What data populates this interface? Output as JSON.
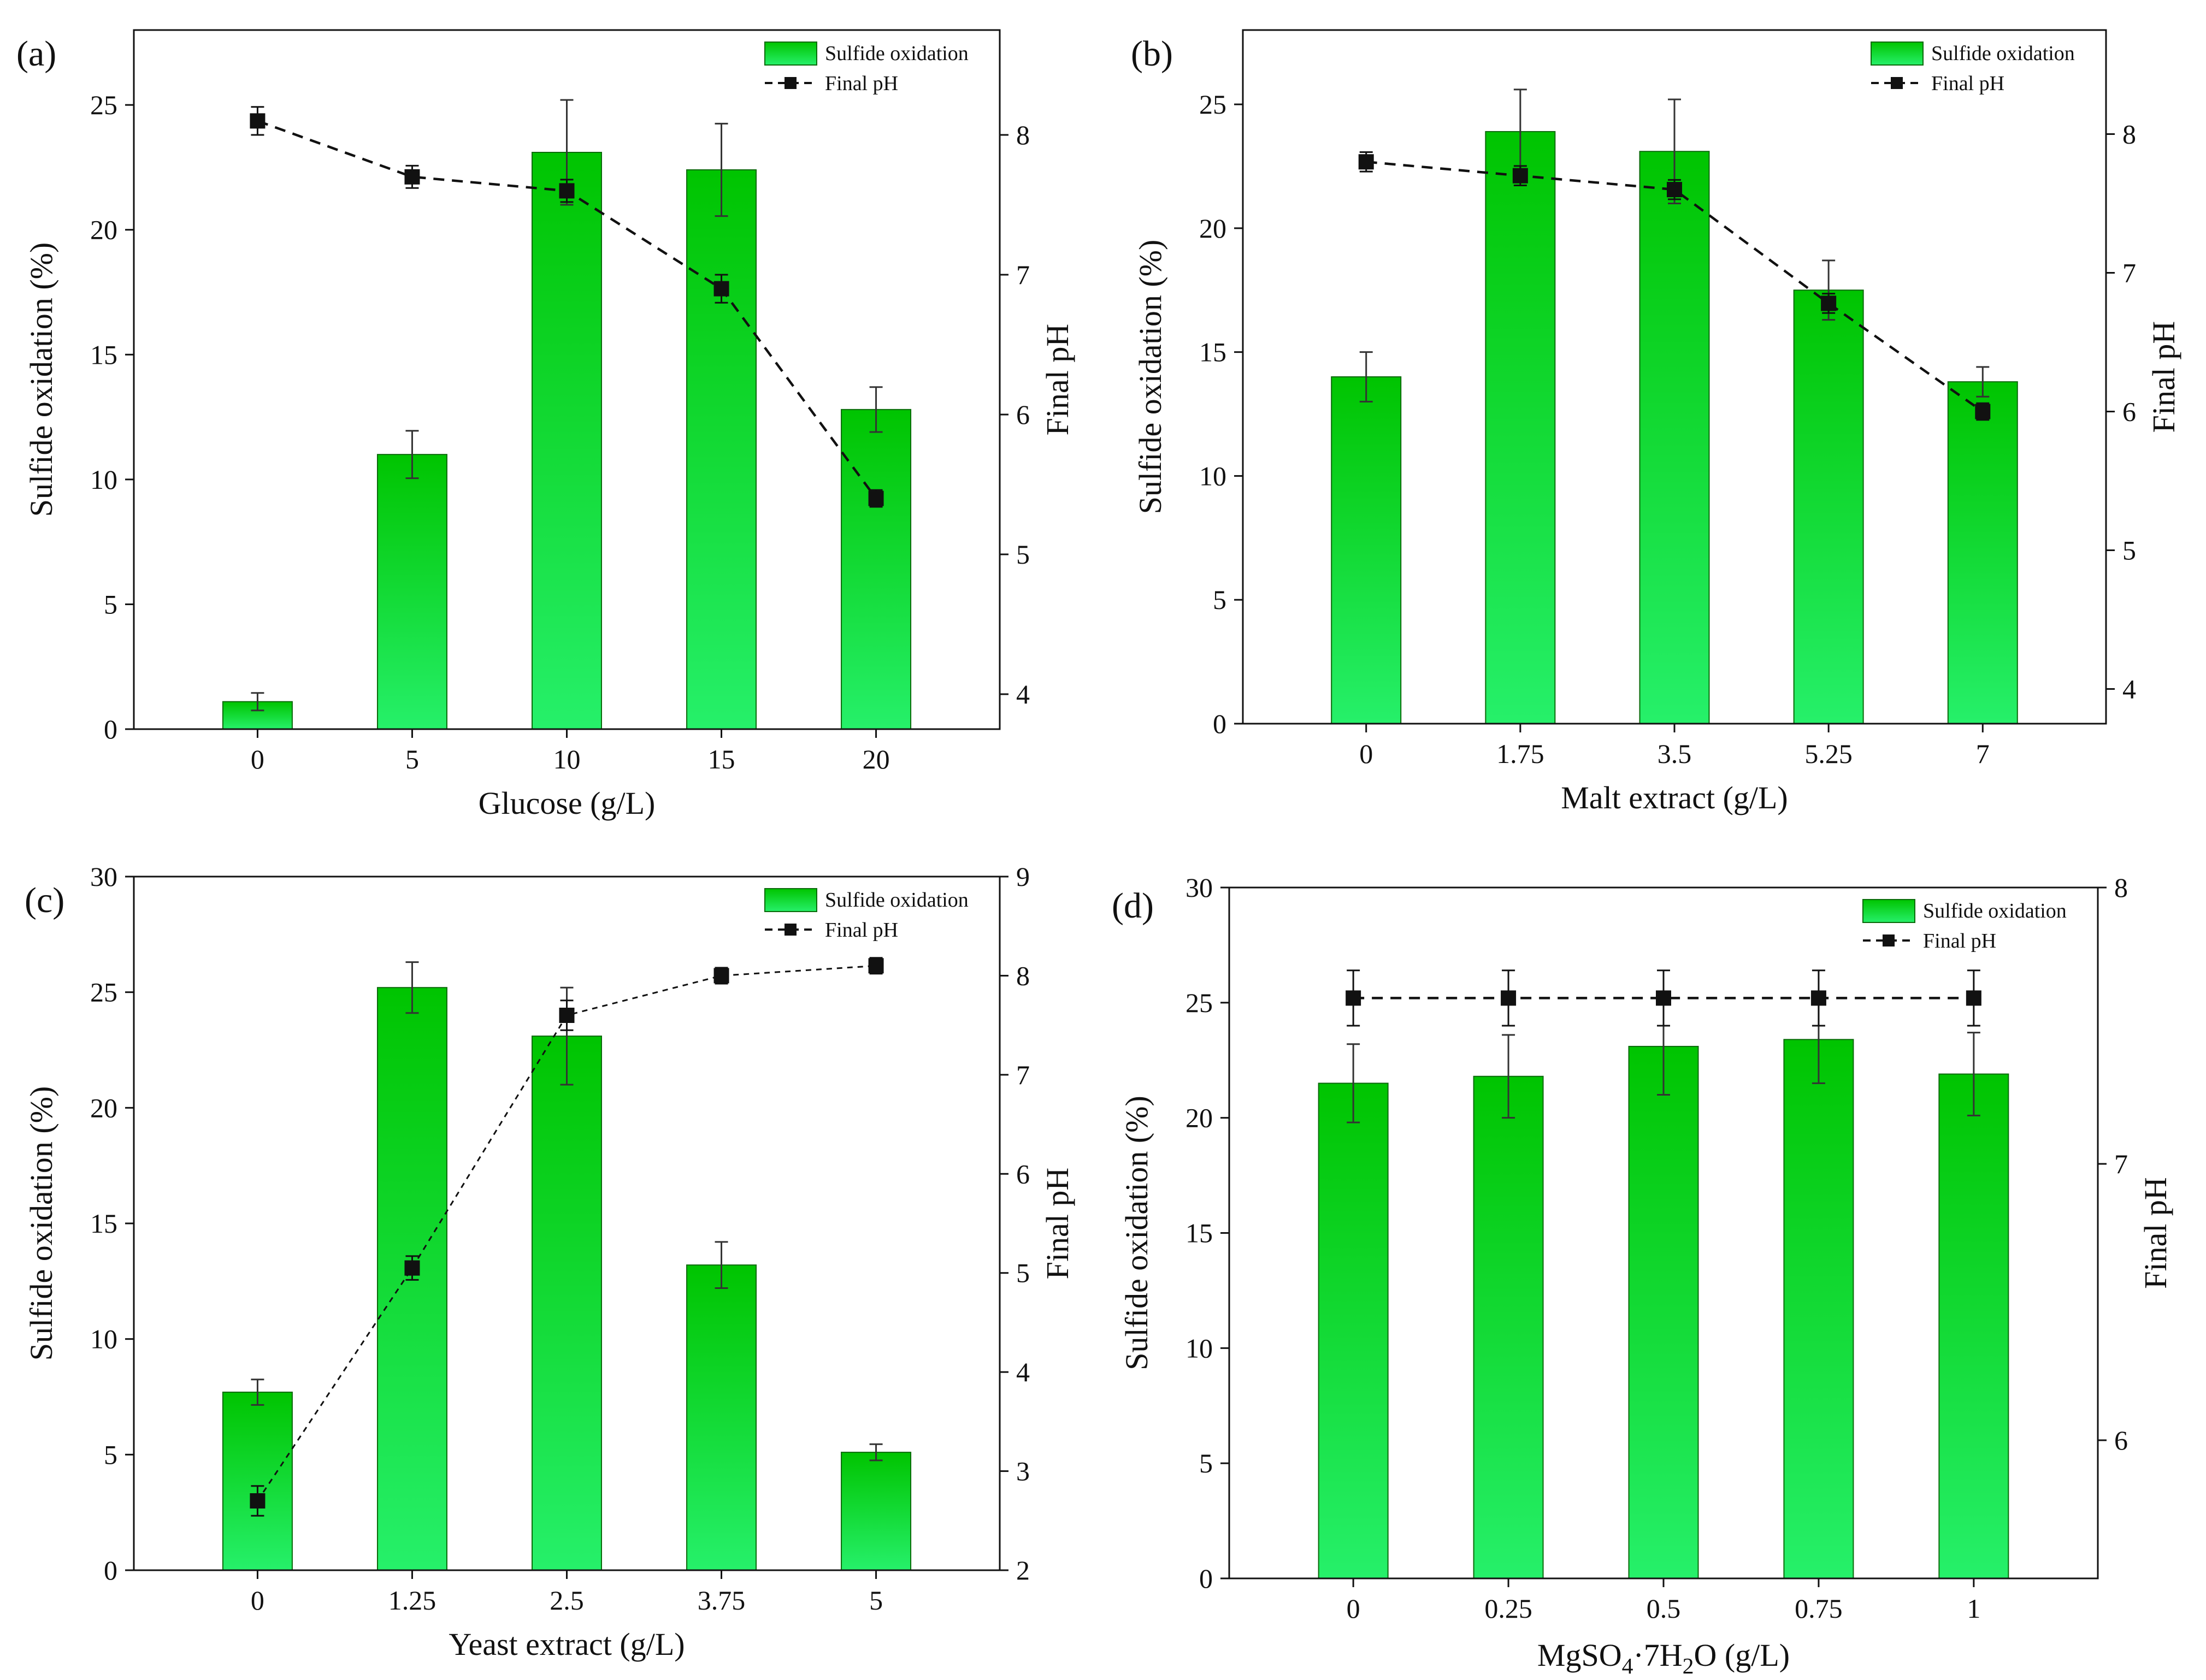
{
  "figure": {
    "legend_bar_label": "Sulfide oxidation",
    "legend_line_label": "Final pH"
  },
  "colors": {
    "bar_top": "#00c800",
    "bar_bottom": "#22ee66",
    "bar_stroke": "#0a6a0a",
    "line": "#111111",
    "axis": "#111111"
  },
  "chart_data": [
    {
      "panel": "(a)",
      "type": "bar+line",
      "xlabel": "Glucose (g/L)",
      "ylabel": "Sulfide oxidation (%)",
      "y2label": "Final pH",
      "categories": [
        "0",
        "5",
        "10",
        "15",
        "20"
      ],
      "ylim": [
        0,
        28
      ],
      "yticks": [
        0,
        5,
        10,
        15,
        20,
        25
      ],
      "y2lim": [
        3.75,
        8.75
      ],
      "y2ticks": [
        4,
        5,
        6,
        7,
        8
      ],
      "series": [
        {
          "name": "Sulfide oxidation",
          "kind": "bar",
          "axis": "left",
          "values": [
            1.1,
            11.0,
            23.1,
            22.4,
            12.8
          ],
          "errors": [
            0.35,
            0.95,
            2.1,
            1.85,
            0.9
          ]
        },
        {
          "name": "Final pH",
          "kind": "line",
          "axis": "right",
          "dash": "dashed",
          "values": [
            8.1,
            7.7,
            7.6,
            6.9,
            5.4
          ],
          "errors": [
            0.1,
            0.08,
            0.08,
            0.1,
            0.06
          ]
        }
      ]
    },
    {
      "panel": "(b)",
      "type": "bar+line",
      "xlabel": "Malt extract (g/L)",
      "ylabel": "Sulfide oxidation (%)",
      "y2label": "Final pH",
      "categories": [
        "0",
        "1.75",
        "3.5",
        "5.25",
        "7"
      ],
      "ylim": [
        0,
        28
      ],
      "yticks": [
        0,
        5,
        10,
        15,
        20,
        25
      ],
      "y2lim": [
        3.75,
        8.75
      ],
      "y2ticks": [
        4,
        5,
        6,
        7,
        8
      ],
      "series": [
        {
          "name": "Sulfide oxidation",
          "kind": "bar",
          "axis": "left",
          "values": [
            14.0,
            23.9,
            23.1,
            17.5,
            13.8
          ],
          "errors": [
            1.0,
            1.7,
            2.1,
            1.2,
            0.6
          ]
        },
        {
          "name": "Final pH",
          "kind": "line",
          "axis": "right",
          "dash": "dashed",
          "values": [
            7.8,
            7.7,
            7.6,
            6.78,
            6.0
          ],
          "errors": [
            0.07,
            0.07,
            0.07,
            0.07,
            0.06
          ]
        }
      ]
    },
    {
      "panel": "(c)",
      "type": "bar+line",
      "xlabel": "Yeast extract (g/L)",
      "ylabel": "Sulfide oxidation (%)",
      "y2label": "Final pH",
      "categories": [
        "0",
        "1.25",
        "2.5",
        "3.75",
        "5"
      ],
      "ylim": [
        0,
        30
      ],
      "yticks": [
        0,
        5,
        10,
        15,
        20,
        25,
        30
      ],
      "y2lim": [
        2,
        9
      ],
      "y2ticks": [
        2,
        3,
        4,
        5,
        6,
        7,
        8,
        9
      ],
      "series": [
        {
          "name": "Sulfide oxidation",
          "kind": "bar",
          "axis": "left",
          "values": [
            7.7,
            25.2,
            23.1,
            13.2,
            5.1
          ],
          "errors": [
            0.55,
            1.1,
            2.1,
            1.0,
            0.35
          ]
        },
        {
          "name": "Final pH",
          "kind": "line",
          "axis": "right",
          "dash": "dashed-fine",
          "values": [
            2.7,
            5.05,
            7.6,
            8.0,
            8.1
          ],
          "errors": [
            0.15,
            0.12,
            0.15,
            0.08,
            0.08
          ]
        }
      ]
    },
    {
      "panel": "(d)",
      "type": "bar+line",
      "xlabel": "MgSO4·7H2O  (g/L)",
      "ylabel": "Sulfide oxidation (%)",
      "y2label": "Final pH",
      "categories": [
        "0",
        "0.25",
        "0.5",
        "0.75",
        "1"
      ],
      "ylim": [
        0,
        30
      ],
      "yticks": [
        0,
        5,
        10,
        15,
        20,
        25,
        30
      ],
      "y2lim": [
        5.5,
        8
      ],
      "y2ticks": [
        6,
        7,
        8
      ],
      "series": [
        {
          "name": "Sulfide oxidation",
          "kind": "bar",
          "axis": "left",
          "values": [
            21.5,
            21.8,
            23.1,
            23.4,
            21.9
          ],
          "errors": [
            1.7,
            1.8,
            2.1,
            1.9,
            1.8
          ]
        },
        {
          "name": "Final pH",
          "kind": "line",
          "axis": "right",
          "dash": "dashed",
          "values": [
            7.6,
            7.6,
            7.6,
            7.6,
            7.6
          ],
          "errors": [
            0.1,
            0.1,
            0.1,
            0.1,
            0.1
          ]
        }
      ]
    }
  ]
}
